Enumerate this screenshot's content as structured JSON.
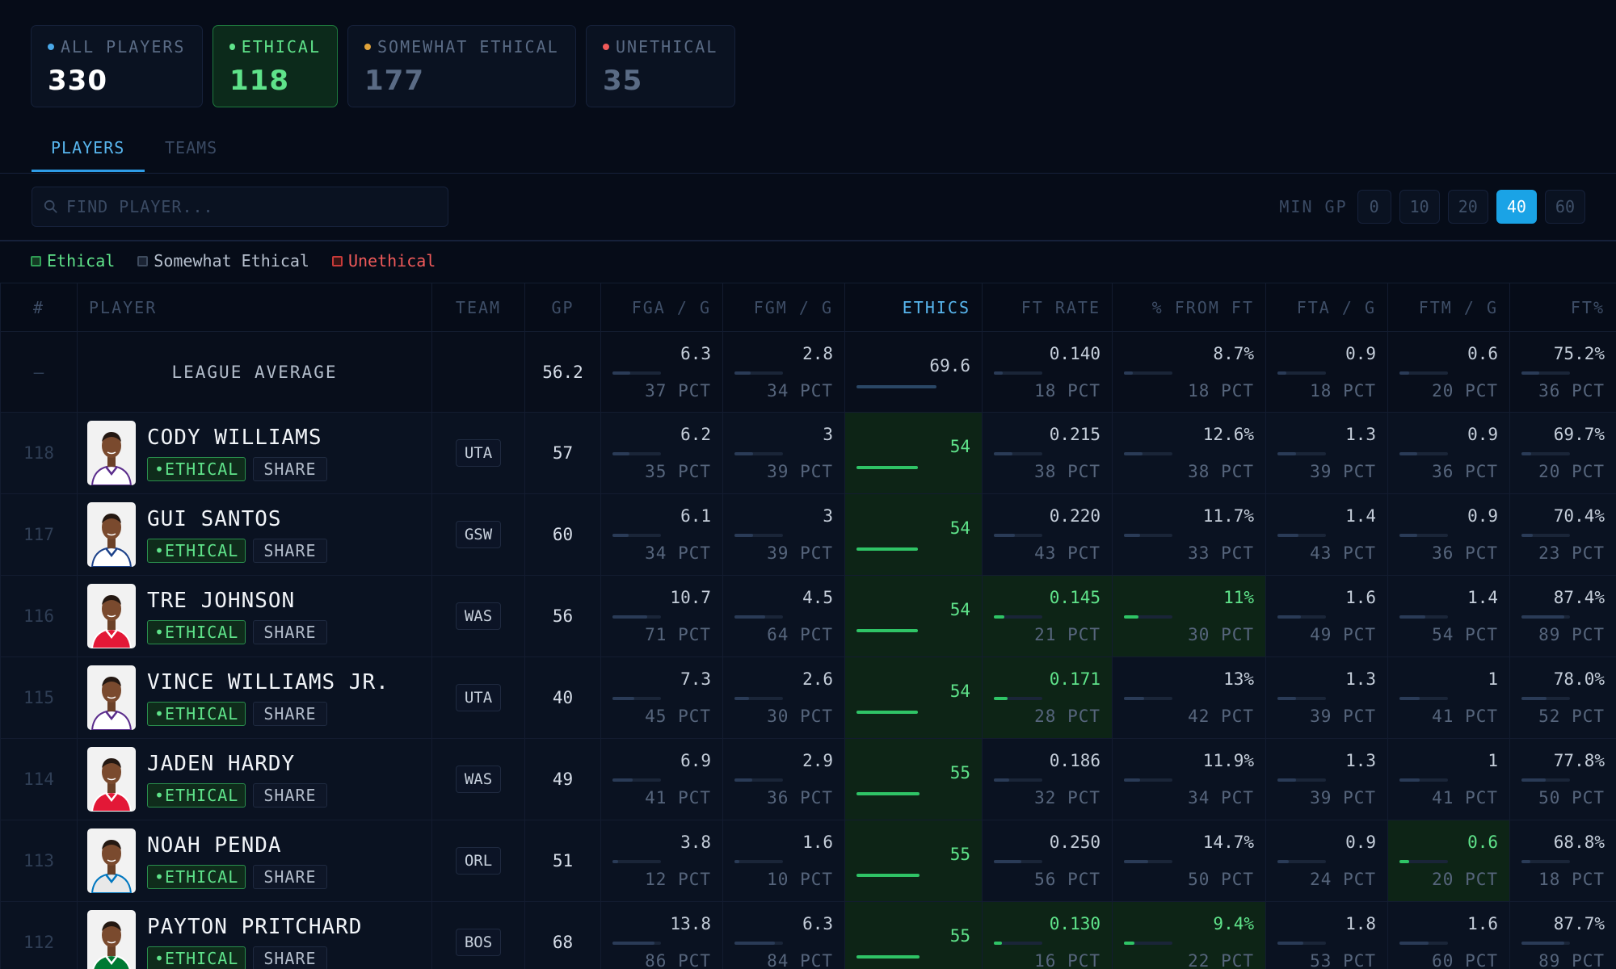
{
  "filters": [
    {
      "label": "ALL PLAYERS",
      "count": "330",
      "dot": "#4aa8e8"
    },
    {
      "label": "ETHICAL",
      "count": "118",
      "dot": "#5fe38a"
    },
    {
      "label": "SOMEWHAT ETHICAL",
      "count": "177",
      "dot": "#e0a33a"
    },
    {
      "label": "UNETHICAL",
      "count": "35",
      "dot": "#f05a5a"
    }
  ],
  "tabs": {
    "players": "PLAYERS",
    "teams": "TEAMS"
  },
  "search": {
    "placeholder": "FIND PLAYER..."
  },
  "min_gp": {
    "label": "MIN GP",
    "options": [
      "0",
      "10",
      "20",
      "40",
      "60"
    ],
    "selected": "40"
  },
  "legend": {
    "ethical": "Ethical",
    "somewhat": "Somewhat Ethical",
    "unethical": "Unethical"
  },
  "columns": [
    "#",
    "PLAYER",
    "TEAM",
    "GP",
    "FGA / G",
    "FGM / G",
    "ETHICS",
    "FT RATE",
    "% FROM FT",
    "FTA / G",
    "FTM / G",
    "FT%"
  ],
  "league_average": {
    "num": "–",
    "label": "LEAGUE AVERAGE",
    "gp": "56.2",
    "fga": {
      "v": "6.3",
      "p": "37 PCT",
      "pct": 37
    },
    "fgm": {
      "v": "2.8",
      "p": "34 PCT",
      "pct": 34
    },
    "ethics": {
      "v": "69.6",
      "pct": 70
    },
    "ftrate": {
      "v": "0.140",
      "p": "18 PCT",
      "pct": 18
    },
    "fromft": {
      "v": "8.7%",
      "p": "18 PCT",
      "pct": 18
    },
    "fta": {
      "v": "0.9",
      "p": "18 PCT",
      "pct": 18
    },
    "ftm": {
      "v": "0.6",
      "p": "20 PCT",
      "pct": 20
    },
    "ftp": {
      "v": "75.2%",
      "p": "36 PCT",
      "pct": 36
    }
  },
  "rows": [
    {
      "num": "118",
      "name": "CODY WILLIAMS",
      "team": "UTA",
      "gp": "57",
      "badge": "•ETHICAL",
      "share": "SHARE",
      "jersey": "#ffffff",
      "trim": "#5b2d8c",
      "fga": {
        "v": "6.2",
        "p": "35 PCT",
        "pct": 35
      },
      "fgm": {
        "v": "3",
        "p": "39 PCT",
        "pct": 39
      },
      "ethics": {
        "v": "54",
        "pct": 54
      },
      "ftrate": {
        "v": "0.215",
        "p": "38 PCT",
        "pct": 38
      },
      "fromft": {
        "v": "12.6%",
        "p": "38 PCT",
        "pct": 38
      },
      "fta": {
        "v": "1.3",
        "p": "39 PCT",
        "pct": 39
      },
      "ftm": {
        "v": "0.9",
        "p": "36 PCT",
        "pct": 36
      },
      "ftp": {
        "v": "69.7%",
        "p": "20 PCT",
        "pct": 20
      },
      "hl": []
    },
    {
      "num": "117",
      "name": "GUI SANTOS",
      "team": "GSW",
      "gp": "60",
      "badge": "•ETHICAL",
      "share": "SHARE",
      "jersey": "#ffffff",
      "trim": "#1d428a",
      "fga": {
        "v": "6.1",
        "p": "34 PCT",
        "pct": 34
      },
      "fgm": {
        "v": "3",
        "p": "39 PCT",
        "pct": 39
      },
      "ethics": {
        "v": "54",
        "pct": 54
      },
      "ftrate": {
        "v": "0.220",
        "p": "43 PCT",
        "pct": 43
      },
      "fromft": {
        "v": "11.7%",
        "p": "33 PCT",
        "pct": 33
      },
      "fta": {
        "v": "1.4",
        "p": "43 PCT",
        "pct": 43
      },
      "ftm": {
        "v": "0.9",
        "p": "36 PCT",
        "pct": 36
      },
      "ftp": {
        "v": "70.4%",
        "p": "23 PCT",
        "pct": 23
      },
      "hl": []
    },
    {
      "num": "116",
      "name": "TRE JOHNSON",
      "team": "WAS",
      "gp": "56",
      "badge": "•ETHICAL",
      "share": "SHARE",
      "jersey": "#e31837",
      "trim": "#ffffff",
      "fga": {
        "v": "10.7",
        "p": "71 PCT",
        "pct": 71
      },
      "fgm": {
        "v": "4.5",
        "p": "64 PCT",
        "pct": 64
      },
      "ethics": {
        "v": "54",
        "pct": 54
      },
      "ftrate": {
        "v": "0.145",
        "p": "21 PCT",
        "pct": 21
      },
      "fromft": {
        "v": "11%",
        "p": "30 PCT",
        "pct": 30
      },
      "fta": {
        "v": "1.6",
        "p": "49 PCT",
        "pct": 49
      },
      "ftm": {
        "v": "1.4",
        "p": "54 PCT",
        "pct": 54
      },
      "ftp": {
        "v": "87.4%",
        "p": "89 PCT",
        "pct": 89
      },
      "hl": [
        "ftrate",
        "fromft"
      ]
    },
    {
      "num": "115",
      "name": "VINCE WILLIAMS JR.",
      "team": "UTA",
      "gp": "40",
      "badge": "•ETHICAL",
      "share": "SHARE",
      "jersey": "#ffffff",
      "trim": "#5b2d8c",
      "fga": {
        "v": "7.3",
        "p": "45 PCT",
        "pct": 45
      },
      "fgm": {
        "v": "2.6",
        "p": "30 PCT",
        "pct": 30
      },
      "ethics": {
        "v": "54",
        "pct": 54
      },
      "ftrate": {
        "v": "0.171",
        "p": "28 PCT",
        "pct": 28
      },
      "fromft": {
        "v": "13%",
        "p": "42 PCT",
        "pct": 42
      },
      "fta": {
        "v": "1.3",
        "p": "39 PCT",
        "pct": 39
      },
      "ftm": {
        "v": "1",
        "p": "41 PCT",
        "pct": 41
      },
      "ftp": {
        "v": "78.0%",
        "p": "52 PCT",
        "pct": 52
      },
      "hl": [
        "ftrate"
      ]
    },
    {
      "num": "114",
      "name": "JADEN HARDY",
      "team": "WAS",
      "gp": "49",
      "badge": "•ETHICAL",
      "share": "SHARE",
      "jersey": "#e31837",
      "trim": "#ffffff",
      "fga": {
        "v": "6.9",
        "p": "41 PCT",
        "pct": 41
      },
      "fgm": {
        "v": "2.9",
        "p": "36 PCT",
        "pct": 36
      },
      "ethics": {
        "v": "55",
        "pct": 55
      },
      "ftrate": {
        "v": "0.186",
        "p": "32 PCT",
        "pct": 32
      },
      "fromft": {
        "v": "11.9%",
        "p": "34 PCT",
        "pct": 34
      },
      "fta": {
        "v": "1.3",
        "p": "39 PCT",
        "pct": 39
      },
      "ftm": {
        "v": "1",
        "p": "41 PCT",
        "pct": 41
      },
      "ftp": {
        "v": "77.8%",
        "p": "50 PCT",
        "pct": 50
      },
      "hl": []
    },
    {
      "num": "113",
      "name": "NOAH PENDA",
      "team": "ORL",
      "gp": "51",
      "badge": "•ETHICAL",
      "share": "SHARE",
      "jersey": "#e8e8e8",
      "trim": "#0077c0",
      "fga": {
        "v": "3.8",
        "p": "12 PCT",
        "pct": 12
      },
      "fgm": {
        "v": "1.6",
        "p": "10 PCT",
        "pct": 10
      },
      "ethics": {
        "v": "55",
        "pct": 55
      },
      "ftrate": {
        "v": "0.250",
        "p": "56 PCT",
        "pct": 56
      },
      "fromft": {
        "v": "14.7%",
        "p": "50 PCT",
        "pct": 50
      },
      "fta": {
        "v": "0.9",
        "p": "24 PCT",
        "pct": 24
      },
      "ftm": {
        "v": "0.6",
        "p": "20 PCT",
        "pct": 20
      },
      "ftp": {
        "v": "68.8%",
        "p": "18 PCT",
        "pct": 18
      },
      "hl": [
        "ftm"
      ]
    },
    {
      "num": "112",
      "name": "PAYTON PRITCHARD",
      "team": "BOS",
      "gp": "68",
      "badge": "•ETHICAL",
      "share": "SHARE",
      "jersey": "#007a33",
      "trim": "#ffffff",
      "fga": {
        "v": "13.8",
        "p": "86 PCT",
        "pct": 86
      },
      "fgm": {
        "v": "6.3",
        "p": "84 PCT",
        "pct": 84
      },
      "ethics": {
        "v": "55",
        "pct": 55
      },
      "ftrate": {
        "v": "0.130",
        "p": "16 PCT",
        "pct": 16
      },
      "fromft": {
        "v": "9.4%",
        "p": "22 PCT",
        "pct": 22
      },
      "fta": {
        "v": "1.8",
        "p": "53 PCT",
        "pct": 53
      },
      "ftm": {
        "v": "1.6",
        "p": "60 PCT",
        "pct": 60
      },
      "ftp": {
        "v": "87.7%",
        "p": "89 PCT",
        "pct": 89
      },
      "hl": [
        "ftrate",
        "fromft"
      ]
    }
  ]
}
